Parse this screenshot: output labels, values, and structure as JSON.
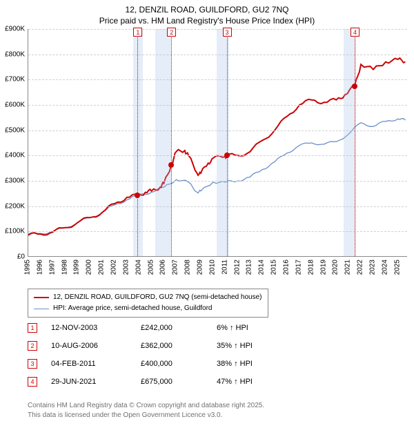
{
  "title_line1": "12, DENZIL ROAD, GUILDFORD, GU2 7NQ",
  "title_line2": "Price paid vs. HM Land Registry's House Price Index (HPI)",
  "chart": {
    "type": "line",
    "background_color": "#ffffff",
    "grid_color": "#d0d0d0",
    "axis_color": "#888888",
    "x_min": 1995,
    "x_max": 2025.8,
    "x_ticks": [
      1995,
      1996,
      1997,
      1998,
      1999,
      2000,
      2001,
      2002,
      2003,
      2004,
      2005,
      2006,
      2007,
      2008,
      2009,
      2010,
      2011,
      2012,
      2013,
      2014,
      2015,
      2016,
      2017,
      2018,
      2019,
      2020,
      2021,
      2022,
      2023,
      2024,
      2025
    ],
    "y_min": 0,
    "y_max": 900000,
    "y_tick_step": 100000,
    "y_tick_labels": [
      "£0",
      "£100K",
      "£200K",
      "£300K",
      "£400K",
      "£500K",
      "£600K",
      "£700K",
      "£800K",
      "£900K"
    ],
    "shaded_bands": [
      {
        "from": 2003.5,
        "to": 2004.3,
        "color": "rgba(160,190,230,0.28)"
      },
      {
        "from": 2005.3,
        "to": 2006.6,
        "color": "rgba(160,190,230,0.28)"
      },
      {
        "from": 2010.3,
        "to": 2011.3,
        "color": "rgba(160,190,230,0.28)"
      },
      {
        "from": 2020.6,
        "to": 2021.6,
        "color": "rgba(160,190,230,0.28)"
      }
    ],
    "sale_markers": [
      {
        "n": "1",
        "x": 2003.87,
        "y": 242000
      },
      {
        "n": "2",
        "x": 2006.61,
        "y": 362000
      },
      {
        "n": "3",
        "x": 2011.1,
        "y": 400000
      },
      {
        "n": "4",
        "x": 2021.49,
        "y": 675000
      }
    ],
    "marker_box_border": "#cc0000",
    "marker_dot_color": "#cc0000",
    "series": [
      {
        "name": "property",
        "label": "12, DENZIL ROAD, GUILDFORD, GU2 7NQ (semi-detached house)",
        "color": "#cc0000",
        "width": 2,
        "data": [
          [
            1995,
            85
          ],
          [
            1996,
            90
          ],
          [
            1997,
            98
          ],
          [
            1998,
            115
          ],
          [
            1999,
            135
          ],
          [
            2000,
            155
          ],
          [
            2001,
            175
          ],
          [
            2002,
            210
          ],
          [
            2003,
            235
          ],
          [
            2003.87,
            242
          ],
          [
            2004.5,
            255
          ],
          [
            2005,
            260
          ],
          [
            2005.7,
            275
          ],
          [
            2006,
            290
          ],
          [
            2006.61,
            362
          ],
          [
            2007,
            415
          ],
          [
            2007.7,
            420
          ],
          [
            2008,
            400
          ],
          [
            2008.7,
            330
          ],
          [
            2009,
            330
          ],
          [
            2009.6,
            370
          ],
          [
            2010,
            390
          ],
          [
            2011,
            395
          ],
          [
            2011.1,
            400
          ],
          [
            2012,
            400
          ],
          [
            2013,
            415
          ],
          [
            2014,
            460
          ],
          [
            2015,
            500
          ],
          [
            2016,
            555
          ],
          [
            2017,
            600
          ],
          [
            2018,
            620
          ],
          [
            2019,
            610
          ],
          [
            2020,
            620
          ],
          [
            2020.7,
            640
          ],
          [
            2021.49,
            675
          ],
          [
            2022,
            760
          ],
          [
            2023,
            740
          ],
          [
            2024,
            770
          ],
          [
            2025,
            780
          ],
          [
            2025.6,
            770
          ]
        ]
      },
      {
        "name": "hpi",
        "label": "HPI: Average price, semi-detached house, Guildford",
        "color": "#6a8fc8",
        "width": 1.3,
        "data": [
          [
            1995,
            90
          ],
          [
            1996,
            92
          ],
          [
            1997,
            100
          ],
          [
            1998,
            115
          ],
          [
            1999,
            135
          ],
          [
            2000,
            155
          ],
          [
            2001,
            175
          ],
          [
            2002,
            205
          ],
          [
            2003,
            225
          ],
          [
            2004,
            245
          ],
          [
            2005,
            255
          ],
          [
            2006,
            275
          ],
          [
            2007,
            305
          ],
          [
            2008,
            295
          ],
          [
            2008.7,
            255
          ],
          [
            2009,
            260
          ],
          [
            2010,
            295
          ],
          [
            2011,
            295
          ],
          [
            2012,
            300
          ],
          [
            2013,
            315
          ],
          [
            2014,
            345
          ],
          [
            2015,
            375
          ],
          [
            2016,
            410
          ],
          [
            2017,
            440
          ],
          [
            2018,
            450
          ],
          [
            2019,
            445
          ],
          [
            2020,
            455
          ],
          [
            2021,
            485
          ],
          [
            2022,
            530
          ],
          [
            2023,
            515
          ],
          [
            2024,
            535
          ],
          [
            2025,
            545
          ],
          [
            2025.6,
            540
          ]
        ]
      }
    ]
  },
  "legend": [
    {
      "label": "12, DENZIL ROAD, GUILDFORD, GU2 7NQ (semi-detached house)",
      "color": "#cc0000",
      "width": 2
    },
    {
      "label": "HPI: Average price, semi-detached house, Guildford",
      "color": "#6a8fc8",
      "width": 1.3
    }
  ],
  "sales_table": {
    "comparison_suffix": "↑ HPI",
    "rows": [
      {
        "n": "1",
        "date": "12-NOV-2003",
        "price": "£242,000",
        "pct": "6%"
      },
      {
        "n": "2",
        "date": "10-AUG-2006",
        "price": "£362,000",
        "pct": "35%"
      },
      {
        "n": "3",
        "date": "04-FEB-2011",
        "price": "£400,000",
        "pct": "38%"
      },
      {
        "n": "4",
        "date": "29-JUN-2021",
        "price": "£675,000",
        "pct": "47%"
      }
    ]
  },
  "footer_line1": "Contains HM Land Registry data © Crown copyright and database right 2025.",
  "footer_line2": "This data is licensed under the Open Government Licence v3.0."
}
